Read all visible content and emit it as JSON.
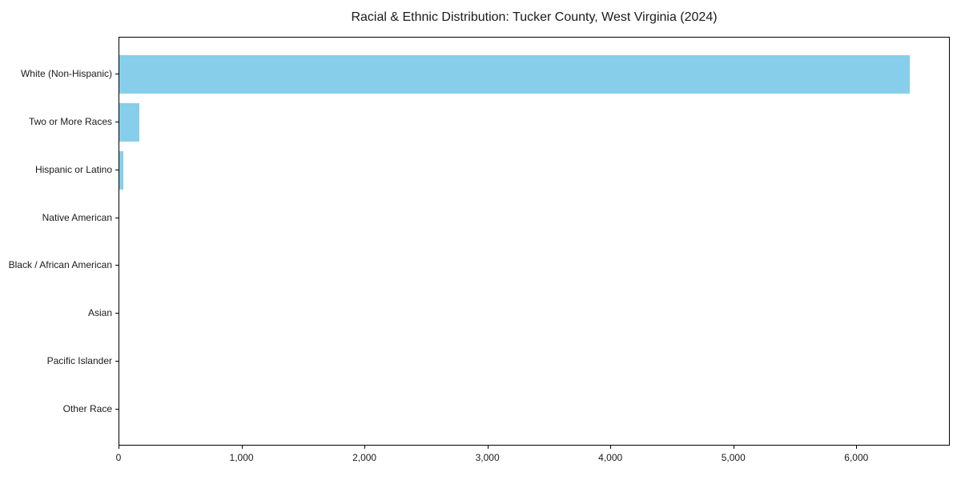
{
  "chart_data": {
    "type": "bar",
    "orientation": "horizontal",
    "title": "Racial & Ethnic Distribution: Tucker County, West Virginia (2024)",
    "categories": [
      "White (Non-Hispanic)",
      "Two or More Races",
      "Hispanic or Latino",
      "Native American",
      "Black / African American",
      "Asian",
      "Pacific Islander",
      "Other Race"
    ],
    "values": [
      6440,
      165,
      35,
      0,
      0,
      0,
      0,
      0
    ],
    "xlabel": "",
    "ylabel": "",
    "xlim": [
      0,
      6760
    ],
    "x_ticks": [
      0,
      1000,
      2000,
      3000,
      4000,
      5000,
      6000
    ],
    "x_tick_labels": [
      "0",
      "1,000",
      "2,000",
      "3,000",
      "4,000",
      "5,000",
      "6,000"
    ],
    "bar_color": "#87CEEB",
    "spine_color": "#000000",
    "text_color": "#1a1a1a",
    "grid": false,
    "legend": null
  }
}
